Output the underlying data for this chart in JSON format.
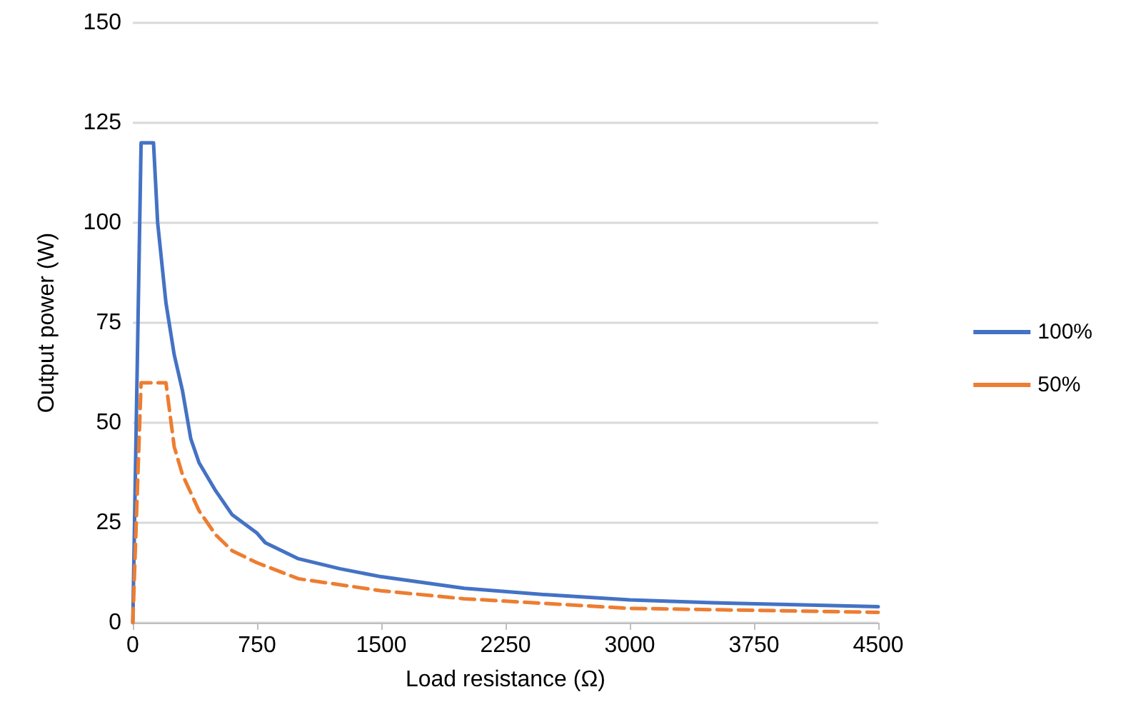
{
  "chart_data": {
    "type": "line",
    "xlabel": "Load resistance (Ω)",
    "ylabel": "Output power (W)",
    "xlim": [
      0,
      4500
    ],
    "xticks": [
      0,
      750,
      1500,
      2250,
      3000,
      3750,
      4500
    ],
    "ylim": [
      0,
      150
    ],
    "yticks": [
      0,
      25,
      50,
      75,
      100,
      125,
      150
    ],
    "grid": "y",
    "legend": "right",
    "marker": "none",
    "series": [
      {
        "name": "100%",
        "color": "#4472c4",
        "line_style": "solid",
        "x": [
          0,
          50,
          125,
          150,
          200,
          250,
          300,
          350,
          400,
          500,
          600,
          750,
          800,
          1000,
          1250,
          1500,
          2000,
          2500,
          3000,
          3500,
          4000,
          4500
        ],
        "values": [
          0,
          120,
          120,
          100,
          80,
          67,
          58,
          46,
          40,
          33,
          27,
          22.4,
          20,
          16,
          13.5,
          11.5,
          8.6,
          7,
          5.7,
          5,
          4.5,
          4
        ]
      },
      {
        "name": "50%",
        "color": "#ed7d31",
        "line_style": "dashed",
        "x": [
          0,
          50,
          200,
          250,
          300,
          400,
          500,
          600,
          750,
          1000,
          1500,
          2000,
          3000,
          4500
        ],
        "values": [
          0,
          60,
          60,
          44,
          37,
          28,
          22,
          18,
          15,
          11,
          8,
          6,
          3.6,
          2.6
        ]
      }
    ]
  }
}
